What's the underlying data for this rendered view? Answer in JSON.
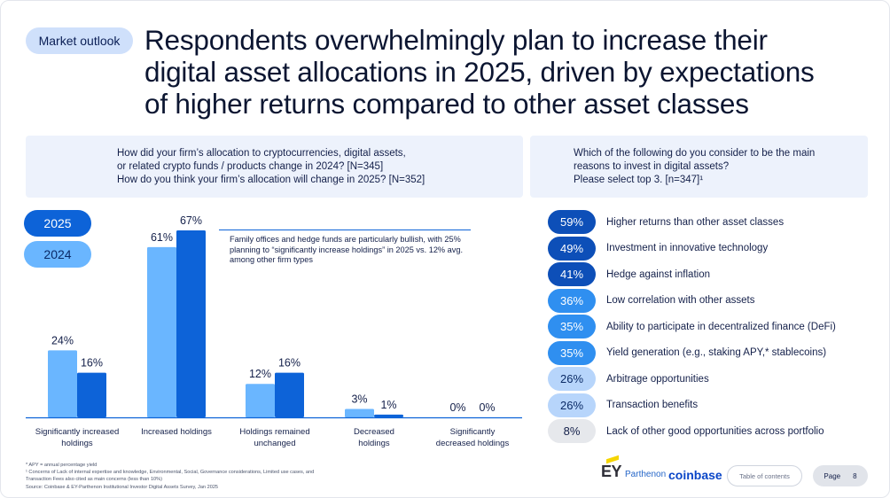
{
  "header": {
    "tag": "Market outlook",
    "title_lines": [
      "Respondents overwhelmingly plan to increase their",
      "digital asset allocations in 2025, driven by expectations",
      "of higher returns compared to other asset classes"
    ]
  },
  "left_question": {
    "lines": [
      "How did your firm’s allocation to cryptocurrencies, digital assets,",
      "or related crypto funds / products change in 2024? [N=345]",
      "How do you think your firm’s allocation will change in 2025? [N=352]"
    ]
  },
  "right_question": {
    "lines": [
      "Which of the following do you consider to be the main",
      "reasons to invest in digital assets?",
      "Please select top 3. [n=347]¹"
    ]
  },
  "legend": {
    "y2025": "2025",
    "y2024": "2024"
  },
  "annotation": "Family offices and hedge funds are particularly bullish, with 25% planning to “significantly increase holdings” in 2025 vs. 12% avg. among other firm types",
  "chart_data": {
    "type": "bar",
    "categories": [
      [
        "Significantly increased",
        "holdings"
      ],
      [
        "Increased holdings"
      ],
      [
        "Holdings remained",
        "unchanged"
      ],
      [
        "Decreased",
        "holdings"
      ],
      [
        "Significantly",
        "decreased holdings"
      ]
    ],
    "series": [
      {
        "name": "2024",
        "values": [
          24,
          61,
          12,
          3,
          0
        ],
        "labels": [
          "24%",
          "61%",
          "12%",
          "3%",
          "0%"
        ],
        "color": "#6ab6ff"
      },
      {
        "name": "2025",
        "values": [
          16,
          67,
          16,
          1,
          0
        ],
        "labels": [
          "16%",
          "67%",
          "16%",
          "1%",
          "0%"
        ],
        "color": "#0d63d8"
      }
    ],
    "ylim": [
      0,
      67
    ],
    "axis_color": "#0d63d8"
  },
  "reasons": [
    {
      "pct": "59%",
      "label": "Higher returns than other asset classes",
      "bg": "#0d4fb8",
      "fg": "#ffffff"
    },
    {
      "pct": "49%",
      "label": "Investment in innovative technology",
      "bg": "#0d4fb8",
      "fg": "#ffffff"
    },
    {
      "pct": "41%",
      "label": "Hedge against inflation",
      "bg": "#0d4fb8",
      "fg": "#ffffff"
    },
    {
      "pct": "36%",
      "label": "Low correlation with other assets",
      "bg": "#2f8ff0",
      "fg": "#ffffff"
    },
    {
      "pct": "35%",
      "label": "Ability to participate in decentralized finance (DeFi)",
      "bg": "#2f8ff0",
      "fg": "#ffffff"
    },
    {
      "pct": "35%",
      "label": "Yield generation (e.g., staking APY,* stablecoins)",
      "bg": "#2f8ff0",
      "fg": "#ffffff"
    },
    {
      "pct": "26%",
      "label": "Arbitrage opportunities",
      "bg": "#b7d5fb",
      "fg": "#0a2a66"
    },
    {
      "pct": "26%",
      "label": "Transaction benefits",
      "bg": "#b7d5fb",
      "fg": "#0a2a66"
    },
    {
      "pct": "8%",
      "label": "Lack of other good opportunities across portfolio",
      "bg": "#e6e8ec",
      "fg": "#14204a"
    }
  ],
  "footnotes": [
    "* APY = annual percentage yield",
    "¹ Concerns of Lack of internal expertise and knowledge, Environmental, Social, Governance considerations, Limited use cases, and",
    "Transaction Fees also cited as main concerns (less than 10%)",
    "Source: Coinbase & EY-Parthenon Institutional Investor Digital Assets Survey, Jan 2025"
  ],
  "footer": {
    "ey": "EY",
    "parthenon": "Parthenon",
    "coinbase": "coinbase",
    "toc": "Table of contents",
    "page_label": "Page",
    "page_number": "8"
  },
  "colors": {
    "accent": "#0d63d8",
    "light": "#6ab6ff",
    "tag_bg": "#cfe0fb",
    "question_bg": "#edf2fc"
  }
}
